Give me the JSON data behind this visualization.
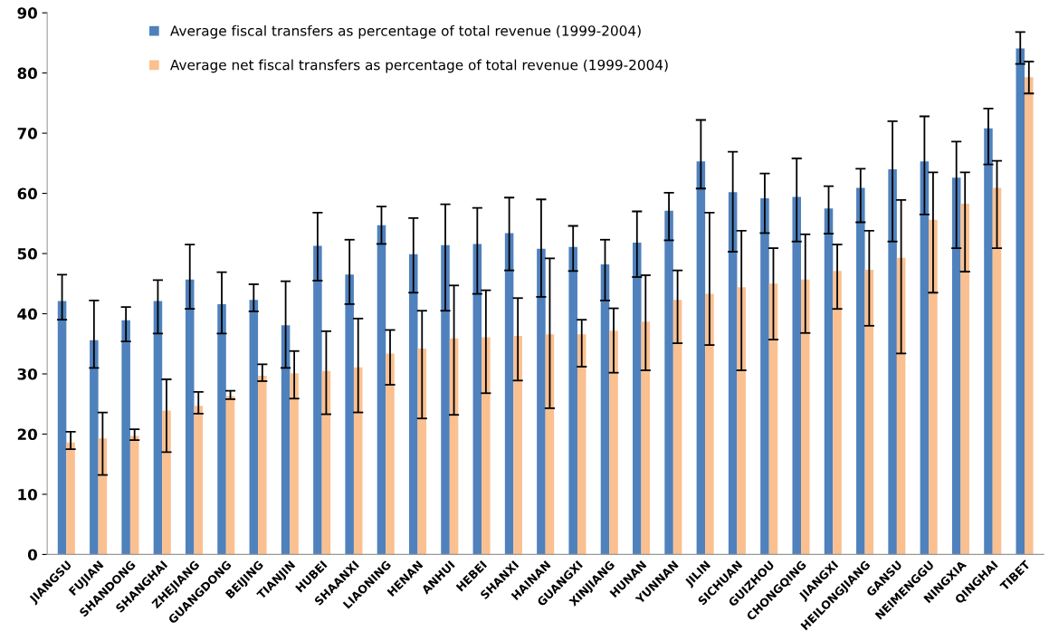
{
  "chart_data": {
    "type": "bar",
    "categories": [
      "JIANGSU",
      "FUJIAN",
      "SHANDONG",
      "SHANGHAI",
      "ZHEJIANG",
      "GUANGDONG",
      "BEIJING",
      "TIANJIN",
      "HUBEI",
      "SHAANXI",
      "LIAONING",
      "HENAN",
      "ANHUI",
      "HEBEI",
      "SHANXI",
      "HAINAN",
      "GUANGXI",
      "XINJIANG",
      "HUNAN",
      "YUNNAN",
      "JILIN",
      "SICHUAN",
      "GUIZHOU",
      "CHONGQING",
      "JIANGXI",
      "HEILONGJIANG",
      "GANSU",
      "NEIMENGGU",
      "NINGXIA",
      "QINGHAI",
      "TIBET"
    ],
    "series": [
      {
        "name": "Average fiscal transfers as percentage of total revenue (1999-2004)",
        "color": "#4f81bd",
        "values": [
          42.1,
          35.6,
          38.9,
          42.1,
          45.7,
          41.6,
          42.3,
          38.1,
          51.3,
          46.5,
          54.7,
          49.9,
          51.4,
          51.6,
          53.4,
          50.8,
          51.1,
          48.2,
          51.8,
          57.1,
          65.3,
          60.2,
          59.2,
          59.4,
          57.5,
          60.9,
          64.0,
          65.3,
          62.6,
          70.8,
          84.1
        ],
        "errors": [
          [
            39,
            46.5
          ],
          [
            31,
            42.2
          ],
          [
            35.4,
            41.1
          ],
          [
            36.7,
            45.6
          ],
          [
            40.8,
            51.5
          ],
          [
            36.7,
            46.9
          ],
          [
            40.4,
            44.9
          ],
          [
            31,
            45.4
          ],
          [
            45.5,
            56.8
          ],
          [
            41.6,
            52.3
          ],
          [
            51.6,
            57.8
          ],
          [
            43.5,
            55.9
          ],
          [
            40.5,
            58.2
          ],
          [
            43.3,
            57.6
          ],
          [
            47.2,
            59.3
          ],
          [
            42.8,
            59
          ],
          [
            47.1,
            54.6
          ],
          [
            42.2,
            52.3
          ],
          [
            46.1,
            57
          ],
          [
            52.2,
            60.1
          ],
          [
            60.8,
            72.2
          ],
          [
            50.3,
            66.9
          ],
          [
            53.4,
            63.3
          ],
          [
            52,
            65.8
          ],
          [
            53.3,
            61.2
          ],
          [
            55.2,
            64.1
          ],
          [
            52,
            72
          ],
          [
            56.5,
            72.8
          ],
          [
            50.9,
            68.6
          ],
          [
            64.8,
            74.1
          ],
          [
            81.5,
            86.8
          ]
        ]
      },
      {
        "name": "Average net fiscal transfers as percentage of total revenue (1999-2004)",
        "color": "#fac090",
        "values": [
          18.6,
          19.3,
          19.7,
          23.9,
          24.7,
          26.3,
          29.7,
          30.1,
          30.5,
          31.1,
          33.4,
          34.2,
          35.9,
          36.1,
          36.3,
          36.6,
          36.6,
          37.2,
          38.7,
          42.3,
          43.3,
          44.4,
          45.0,
          45.7,
          47.1,
          47.3,
          49.3,
          55.6,
          58.3,
          60.9,
          79.3
        ],
        "errors": [
          [
            17.5,
            20.4
          ],
          [
            13.2,
            23.6
          ],
          [
            19,
            20.8
          ],
          [
            17,
            29.1
          ],
          [
            23.4,
            27
          ],
          [
            25.8,
            27.2
          ],
          [
            28.8,
            31.6
          ],
          [
            25.9,
            33.8
          ],
          [
            23.3,
            37.1
          ],
          [
            23.6,
            39.2
          ],
          [
            28.2,
            37.3
          ],
          [
            22.6,
            40.5
          ],
          [
            23.2,
            44.7
          ],
          [
            26.8,
            43.9
          ],
          [
            28.9,
            42.6
          ],
          [
            24.3,
            49.2
          ],
          [
            31.2,
            39
          ],
          [
            30.2,
            40.9
          ],
          [
            30.6,
            46.4
          ],
          [
            35.1,
            47.2
          ],
          [
            34.8,
            56.8
          ],
          [
            30.6,
            53.8
          ],
          [
            35.7,
            50.9
          ],
          [
            36.8,
            53.2
          ],
          [
            40.8,
            51.5
          ],
          [
            38,
            53.8
          ],
          [
            33.4,
            58.9
          ],
          [
            43.5,
            63.5
          ],
          [
            47,
            63.5
          ],
          [
            50.9,
            65.4
          ],
          [
            76.6,
            81.9
          ]
        ]
      }
    ],
    "ylim": [
      0,
      90
    ],
    "yticks": [
      0,
      10,
      20,
      30,
      40,
      50,
      60,
      70,
      80,
      90
    ],
    "legend": "top left",
    "grid": false
  }
}
